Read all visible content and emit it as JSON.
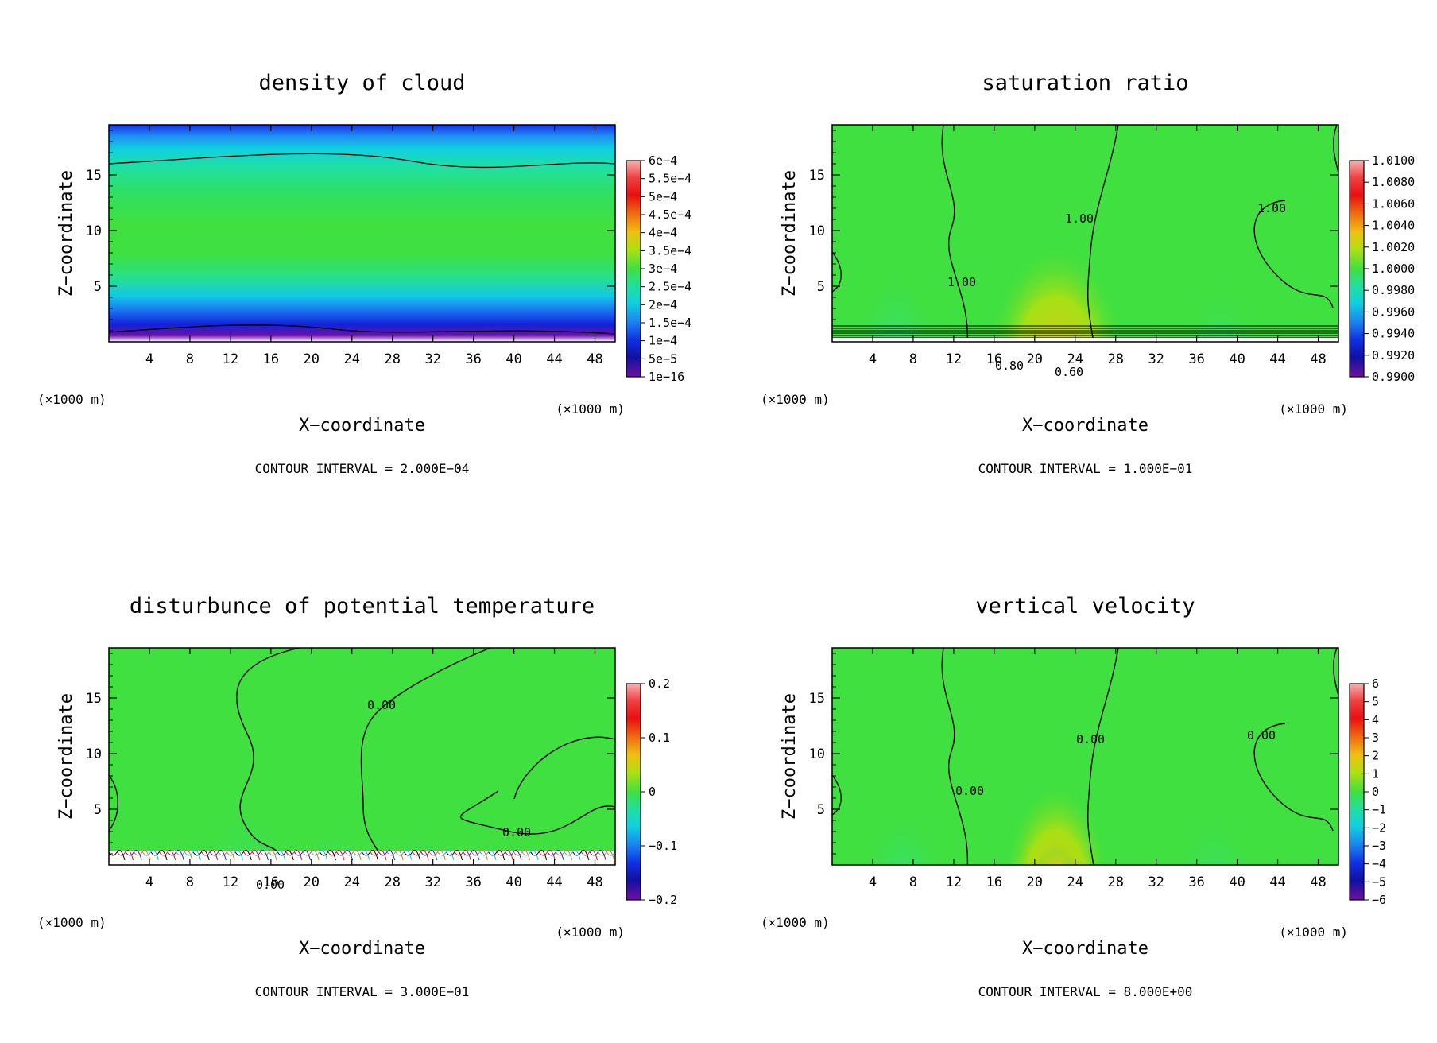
{
  "charts": [
    {
      "title": "density of cloud",
      "xlabel": "X−coordinate",
      "ylabel": "Z−coordinate",
      "x_ticks": [
        "4",
        "8",
        "12",
        "16",
        "20",
        "24",
        "28",
        "32",
        "36",
        "40",
        "44",
        "48"
      ],
      "y_ticks": [
        "5",
        "10",
        "15"
      ],
      "x_unit_left": "(×1000 m)",
      "x_unit_right": "(×1000 m)",
      "colorbar_labels": [
        "6e−4",
        "5.5e−4",
        "5e−4",
        "4.5e−4",
        "4e−4",
        "3.5e−4",
        "3e−4",
        "2.5e−4",
        "2e−4",
        "1.5e−4",
        "1e−4",
        "5e−5",
        "1e−16"
      ],
      "contour_interval": "CONTOUR INTERVAL = 2.000E−04",
      "contour_labels": []
    },
    {
      "title": "saturation ratio",
      "xlabel": "X−coordinate",
      "ylabel": "Z−coordinate",
      "x_ticks": [
        "4",
        "8",
        "12",
        "16",
        "20",
        "24",
        "28",
        "32",
        "36",
        "40",
        "44",
        "48"
      ],
      "y_ticks": [
        "5",
        "10",
        "15"
      ],
      "x_unit_left": "(×1000 m)",
      "x_unit_right": "(×1000 m)",
      "colorbar_labels": [
        "1.0100",
        "1.0080",
        "1.0060",
        "1.0040",
        "1.0020",
        "1.0000",
        "0.9980",
        "0.9960",
        "0.9940",
        "0.9920",
        "0.9900"
      ],
      "contour_interval": "CONTOUR INTERVAL = 1.000E−01",
      "contour_labels": [
        "1.00",
        "1.00",
        "1.00",
        "0.80",
        "0.60"
      ]
    },
    {
      "title": "disturbunce of potential temperature",
      "xlabel": "X−coordinate",
      "ylabel": "Z−coordinate",
      "x_ticks": [
        "4",
        "8",
        "12",
        "16",
        "20",
        "24",
        "28",
        "32",
        "36",
        "40",
        "44",
        "48"
      ],
      "y_ticks": [
        "5",
        "10",
        "15"
      ],
      "x_unit_left": "(×1000 m)",
      "x_unit_right": "(×1000 m)",
      "colorbar_labels": [
        "0.2",
        "0.1",
        "0",
        "−0.1",
        "−0.2"
      ],
      "contour_interval": "CONTOUR INTERVAL = 3.000E−01",
      "contour_labels": [
        "0.00",
        "0.00",
        "0.00"
      ]
    },
    {
      "title": "vertical velocity",
      "xlabel": "X−coordinate",
      "ylabel": "Z−coordinate",
      "x_ticks": [
        "4",
        "8",
        "12",
        "16",
        "20",
        "24",
        "28",
        "32",
        "36",
        "40",
        "44",
        "48"
      ],
      "y_ticks": [
        "5",
        "10",
        "15"
      ],
      "x_unit_left": "(×1000 m)",
      "x_unit_right": "(×1000 m)",
      "colorbar_labels": [
        "6",
        "5",
        "4",
        "3",
        "2",
        "1",
        "0",
        "−1",
        "−2",
        "−3",
        "−4",
        "−5",
        "−6"
      ],
      "contour_interval": "CONTOUR INTERVAL = 8.000E+00",
      "contour_labels": [
        "0.00",
        "0.00",
        "0.00"
      ]
    }
  ],
  "chart_data": [
    {
      "type": "heatmap",
      "title": "density of cloud",
      "xlabel": "X−coordinate",
      "ylabel": "Z−coordinate",
      "xlim": [
        0,
        50
      ],
      "ylim": [
        0,
        19.5
      ],
      "x_ticks": [
        4,
        8,
        12,
        16,
        20,
        24,
        28,
        32,
        36,
        40,
        44,
        48
      ],
      "y_ticks": [
        5,
        10,
        15
      ],
      "colorbar_levels": [
        0.0006,
        0.00055,
        0.0005,
        0.00045,
        0.0004,
        0.00035,
        0.0003,
        0.00025,
        0.0002,
        0.00015,
        0.0001,
        5e-05,
        1e-16
      ],
      "contour_interval": 0.0002
    },
    {
      "type": "heatmap",
      "title": "saturation ratio",
      "xlabel": "X−coordinate",
      "ylabel": "Z−coordinate",
      "xlim": [
        0,
        50
      ],
      "ylim": [
        0,
        19.5
      ],
      "x_ticks": [
        4,
        8,
        12,
        16,
        20,
        24,
        28,
        32,
        36,
        40,
        44,
        48
      ],
      "y_ticks": [
        5,
        10,
        15
      ],
      "colorbar_levels": [
        1.01,
        1.008,
        1.006,
        1.004,
        1.002,
        1.0,
        0.998,
        0.996,
        0.994,
        0.992,
        0.99
      ],
      "contour_interval": 0.1,
      "contour_labels": [
        1.0,
        1.0,
        1.0,
        0.8,
        0.6
      ]
    },
    {
      "type": "heatmap",
      "title": "disturbunce of potential temperature",
      "xlabel": "X−coordinate",
      "ylabel": "Z−coordinate",
      "xlim": [
        0,
        50
      ],
      "ylim": [
        0,
        19.5
      ],
      "x_ticks": [
        4,
        8,
        12,
        16,
        20,
        24,
        28,
        32,
        36,
        40,
        44,
        48
      ],
      "y_ticks": [
        5,
        10,
        15
      ],
      "colorbar_levels": [
        0.2,
        0.1,
        0,
        -0.1,
        -0.2
      ],
      "contour_interval": 0.3,
      "contour_labels": [
        0.0,
        0.0,
        0.0
      ]
    },
    {
      "type": "heatmap",
      "title": "vertical velocity",
      "xlabel": "X−coordinate",
      "ylabel": "Z−coordinate",
      "xlim": [
        0,
        50
      ],
      "ylim": [
        0,
        19.5
      ],
      "x_ticks": [
        4,
        8,
        12,
        16,
        20,
        24,
        28,
        32,
        36,
        40,
        44,
        48
      ],
      "y_ticks": [
        5,
        10,
        15
      ],
      "colorbar_levels": [
        6,
        5,
        4,
        3,
        2,
        1,
        0,
        -1,
        -2,
        -3,
        -4,
        -5,
        -6
      ],
      "contour_interval": 8.0,
      "contour_labels": [
        0.0,
        0.0,
        0.0
      ]
    }
  ]
}
